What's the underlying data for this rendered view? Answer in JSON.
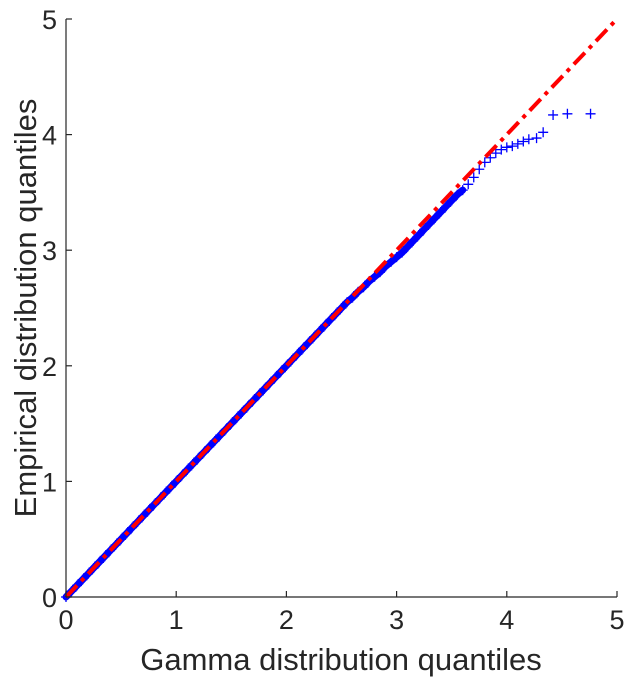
{
  "chart_data": {
    "type": "scatter",
    "title": "",
    "xlabel": "Gamma distribution quantiles",
    "ylabel": "Empirical distribution quantiles",
    "xlim": [
      0,
      5
    ],
    "ylim": [
      0,
      5
    ],
    "xticks": [
      "0",
      "1",
      "2",
      "3",
      "4",
      "5"
    ],
    "yticks": [
      "0",
      "1",
      "2",
      "3",
      "4",
      "5"
    ],
    "grid": false,
    "legend": "none",
    "reference_line": {
      "x": [
        0,
        5
      ],
      "y": [
        0,
        5
      ],
      "color": "#ff0000",
      "style": "dash-dot"
    },
    "series": [
      {
        "marker": "plus",
        "color": "#0000ff",
        "x": [
          0.0,
          0.05,
          0.1,
          0.15,
          0.2,
          0.25,
          0.3,
          0.35,
          0.4,
          0.45,
          0.5,
          0.55,
          0.6,
          0.65,
          0.7,
          0.75,
          0.8,
          0.85,
          0.9,
          0.95,
          1.0,
          1.05,
          1.1,
          1.15,
          1.2,
          1.25,
          1.3,
          1.35,
          1.4,
          1.45,
          1.5,
          1.55,
          1.6,
          1.65,
          1.7,
          1.75,
          1.8,
          1.85,
          1.9,
          1.95,
          2.0,
          2.05,
          2.1,
          2.15,
          2.2,
          2.25,
          2.3,
          2.35,
          2.4,
          2.45,
          2.5,
          2.55,
          2.6,
          2.65,
          2.7,
          2.75,
          2.8,
          2.85,
          2.9,
          2.95,
          3.0,
          3.05,
          3.1,
          3.15,
          3.2,
          3.25,
          3.3,
          3.35,
          3.4,
          3.45,
          3.5,
          3.55,
          3.6,
          3.65,
          3.7,
          3.75,
          3.8,
          3.85,
          3.9,
          3.95,
          4.0,
          4.05,
          4.1,
          4.15,
          4.2,
          4.27,
          4.33,
          4.42,
          4.55,
          4.76
        ],
        "y": [
          0.0,
          0.05,
          0.1,
          0.15,
          0.2,
          0.25,
          0.3,
          0.35,
          0.4,
          0.45,
          0.5,
          0.55,
          0.6,
          0.65,
          0.7,
          0.75,
          0.8,
          0.85,
          0.9,
          0.95,
          1.0,
          1.05,
          1.1,
          1.15,
          1.2,
          1.25,
          1.3,
          1.35,
          1.4,
          1.45,
          1.5,
          1.55,
          1.6,
          1.65,
          1.7,
          1.75,
          1.8,
          1.85,
          1.9,
          1.95,
          2.0,
          2.05,
          2.1,
          2.15,
          2.2,
          2.25,
          2.3,
          2.35,
          2.4,
          2.45,
          2.5,
          2.55,
          2.59,
          2.64,
          2.68,
          2.73,
          2.77,
          2.81,
          2.86,
          2.9,
          2.94,
          2.98,
          3.03,
          3.08,
          3.13,
          3.18,
          3.23,
          3.28,
          3.33,
          3.38,
          3.43,
          3.48,
          3.52,
          3.57,
          3.63,
          3.7,
          3.76,
          3.8,
          3.84,
          3.87,
          3.89,
          3.9,
          3.92,
          3.94,
          3.96,
          3.97,
          4.02,
          4.17,
          4.18,
          4.18
        ]
      }
    ]
  }
}
